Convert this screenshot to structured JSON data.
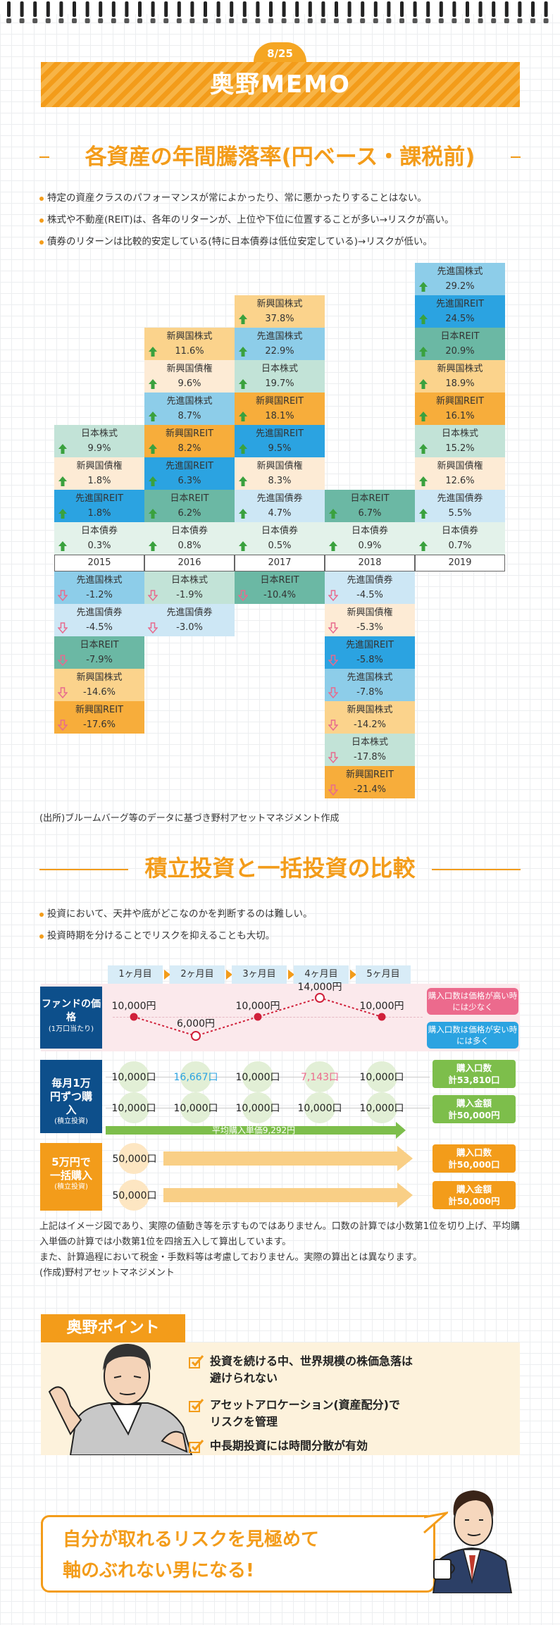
{
  "header": {
    "date": "8/25",
    "title": "奥野MEMO"
  },
  "section1": {
    "title": "各資産の年間騰落率(円ベース・課税前)",
    "bullets": [
      "特定の資産クラスのパフォーマンスが常によかったり、常に悪かったりすることはない。",
      "株式や不動産(REIT)は、各年のリターンが、上位や下位に位置することが多い→リスクが高い。",
      "債券のリターンは比較的安定している(特に日本債券は低位安定している)→リスクが低い。"
    ],
    "source": "(出所)ブルームバーグ等のデータに基づき野村アセットマネジメント作成"
  },
  "chart_data": {
    "type": "table",
    "years": [
      "2015",
      "2016",
      "2017",
      "2018",
      "2019"
    ],
    "columns": [
      {
        "positive": [
          {
            "name": "日本株式",
            "value": "9.9%"
          },
          {
            "name": "新興国債権",
            "value": "1.8%"
          },
          {
            "name": "先進国REIT",
            "value": "1.8%"
          },
          {
            "name": "日本債券",
            "value": "0.3%"
          }
        ],
        "negative": [
          {
            "name": "先進国株式",
            "value": "-1.2%"
          },
          {
            "name": "先進国債券",
            "value": "-4.5%"
          },
          {
            "name": "日本REIT",
            "value": "-7.9%"
          },
          {
            "name": "新興国株式",
            "value": "-14.6%"
          },
          {
            "name": "新興国REIT",
            "value": "-17.6%"
          }
        ]
      },
      {
        "positive": [
          {
            "name": "新興国株式",
            "value": "11.6%"
          },
          {
            "name": "新興国債権",
            "value": "9.6%"
          },
          {
            "name": "先進国株式",
            "value": "8.7%"
          },
          {
            "name": "新興国REIT",
            "value": "8.2%"
          },
          {
            "name": "先進国REIT",
            "value": "6.3%"
          },
          {
            "name": "日本REIT",
            "value": "6.2%"
          },
          {
            "name": "日本債券",
            "value": "0.8%"
          }
        ],
        "negative": [
          {
            "name": "日本株式",
            "value": "-1.9%"
          },
          {
            "name": "先進国債券",
            "value": "-3.0%"
          }
        ]
      },
      {
        "positive": [
          {
            "name": "新興国株式",
            "value": "37.8%"
          },
          {
            "name": "先進国株式",
            "value": "22.9%"
          },
          {
            "name": "日本株式",
            "value": "19.7%"
          },
          {
            "name": "新興国REIT",
            "value": "18.1%"
          },
          {
            "name": "先進国REIT",
            "value": "9.5%"
          },
          {
            "name": "新興国債権",
            "value": "8.3%"
          },
          {
            "name": "先進国債券",
            "value": "4.7%"
          },
          {
            "name": "日本債券",
            "value": "0.5%"
          }
        ],
        "negative": [
          {
            "name": "日本REIT",
            "value": "-10.4%"
          }
        ]
      },
      {
        "positive": [
          {
            "name": "日本REIT",
            "value": "6.7%"
          },
          {
            "name": "日本債券",
            "value": "0.9%"
          }
        ],
        "negative": [
          {
            "name": "先進国債券",
            "value": "-4.5%"
          },
          {
            "name": "新興国債権",
            "value": "-5.3%"
          },
          {
            "name": "先進国REIT",
            "value": "-5.8%"
          },
          {
            "name": "先進国株式",
            "value": "-7.8%"
          },
          {
            "name": "新興国株式",
            "value": "-14.2%"
          },
          {
            "name": "日本株式",
            "value": "-17.8%"
          },
          {
            "name": "新興国REIT",
            "value": "-21.4%"
          }
        ]
      },
      {
        "positive": [
          {
            "name": "先進国株式",
            "value": "29.2%"
          },
          {
            "name": "先進国REIT",
            "value": "24.5%"
          },
          {
            "name": "日本REIT",
            "value": "20.9%"
          },
          {
            "name": "新興国株式",
            "value": "18.9%"
          },
          {
            "name": "新興国REIT",
            "value": "16.1%"
          },
          {
            "name": "日本株式",
            "value": "15.2%"
          },
          {
            "name": "新興国債権",
            "value": "12.6%"
          },
          {
            "name": "先進国債券",
            "value": "5.5%"
          },
          {
            "name": "日本債券",
            "value": "0.7%"
          }
        ],
        "negative": []
      }
    ],
    "asset_colors": {
      "先進国株式": "#8dcde9",
      "新興国株式": "#fbd38c",
      "日本株式": "#c2e3d7",
      "先進国REIT": "#2ba3e1",
      "新興国REIT": "#f7ad3b",
      "日本REIT": "#6bb8a4",
      "先進国債券": "#cde7f5",
      "新興国債権": "#fdebd5",
      "日本債券": "#e3f2ea"
    }
  },
  "section2": {
    "title": "積立投資と一括投資の比較",
    "bullets": [
      "投資において、天井や底がどこなのかを判断するのは難しい。",
      "投資時期を分けることでリスクを抑えることも大切。"
    ],
    "months": [
      "1ヶ月目",
      "2ヶ月目",
      "3ヶ月目",
      "4ヶ月目",
      "5ヶ月目"
    ],
    "fund_label": {
      "main": "ファンドの価格",
      "sub": "(1万口当たり)"
    },
    "prices": [
      "10,000円",
      "6,000円",
      "10,000円",
      "14,000円",
      "10,000円"
    ],
    "price_values": [
      10000,
      6000,
      10000,
      14000,
      10000
    ],
    "high_note": "購入口数は価格が高い時には少なく",
    "low_note": "購入口数は価格が安い時には多く",
    "monthly": {
      "label": "毎月1万円ずつ購入",
      "sub": "(積立投資)",
      "units": [
        "10,000口",
        "16,667口",
        "10,000口",
        "7,143口",
        "10,000口"
      ],
      "amounts": [
        "10,000口",
        "10,000口",
        "10,000口",
        "10,000口",
        "10,000口"
      ],
      "avg": "平均購入単価9,292円",
      "total_units": "購入口数\n計53,810口",
      "total_amount": "購入金額\n計50,000円"
    },
    "lump": {
      "label": "5万円で一括購入",
      "sub": "(積立投資)",
      "units": "50,000口",
      "amount": "50,000口",
      "total_units": "購入口数\n計50,000口",
      "total_amount": "購入金額\n計50,000円"
    },
    "notes": [
      "上記はイメージ図であり、実際の値動き等を示すものではありません。口数の計算では小数第1位を切り上げ、平均購入単価の計算では小数第1位を四捨五入して算出しています。",
      "また、計算過程において税金・手数料等は考慮しておりません。実際の算出とは異なります。",
      "(作成)野村アセットマネジメント"
    ],
    "colors": {
      "navy": "#0d4f8b",
      "orange": "#f39c1a",
      "green": "#7dbe4b",
      "pink": "#ec6a8d",
      "blue": "#2ba3e1",
      "lightorange": "#f9cf86"
    }
  },
  "point": {
    "tab": "奥野ポイント",
    "items": [
      "投資を続ける中、世界規模の株価急落は\n避けられない",
      "アセットアロケーション(資産配分)で\nリスクを管理",
      "中長期投資には時間分散が有効"
    ],
    "final": "自分が取れるリスクを見極めて\n軸のぶれない男になる!"
  }
}
